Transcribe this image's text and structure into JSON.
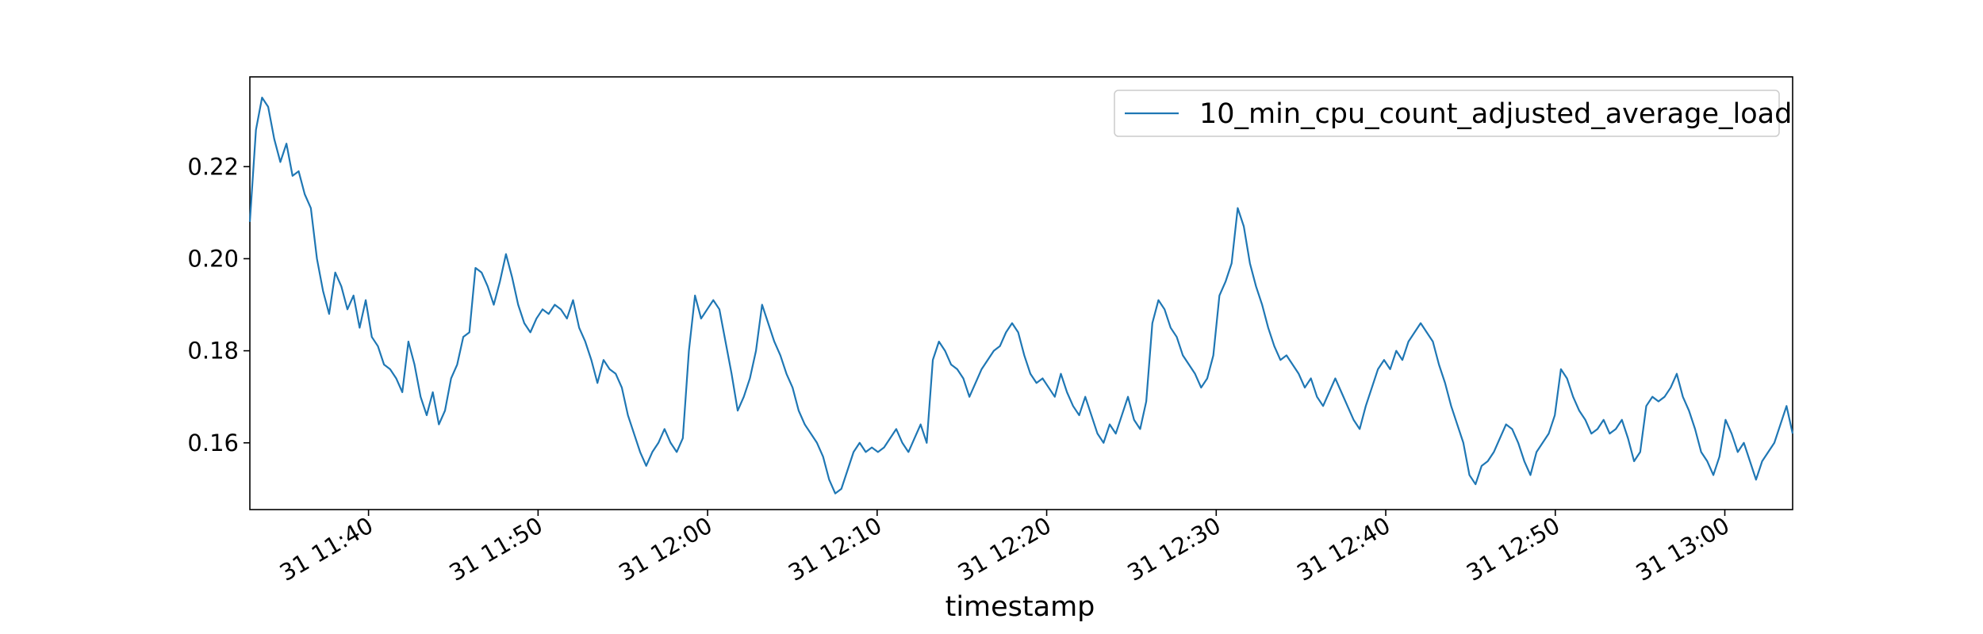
{
  "chart_data": {
    "type": "line",
    "title": "",
    "xlabel": "timestamp",
    "ylabel": "",
    "x_start": "2024-01-31T11:33",
    "x_end": "2024-01-31T13:04",
    "xlim": [
      "2024-01-31T11:33",
      "2024-01-31T13:04"
    ],
    "ylim": [
      0.1455,
      0.2395
    ],
    "yticks": [
      0.16,
      0.18,
      0.2,
      0.22
    ],
    "ytick_labels": [
      "0.16",
      "0.18",
      "0.20",
      "0.22"
    ],
    "xticks": [
      "2024-01-31T11:40",
      "2024-01-31T11:50",
      "2024-01-31T12:00",
      "2024-01-31T12:10",
      "2024-01-31T12:20",
      "2024-01-31T12:30",
      "2024-01-31T12:40",
      "2024-01-31T12:50",
      "2024-01-31T13:00"
    ],
    "xtick_labels": [
      "31 11:40",
      "31 11:50",
      "31 12:00",
      "31 12:10",
      "31 12:20",
      "31 12:30",
      "31 12:40",
      "31 12:50",
      "31 13:00"
    ],
    "grid": false,
    "legend_position": "top-right",
    "series": [
      {
        "name": "10_min_cpu_count_adjusted_average_load",
        "color": "#1f77b4",
        "values": [
          0.208,
          0.228,
          0.235,
          0.233,
          0.226,
          0.221,
          0.225,
          0.218,
          0.219,
          0.214,
          0.211,
          0.2,
          0.193,
          0.188,
          0.197,
          0.194,
          0.189,
          0.192,
          0.185,
          0.191,
          0.183,
          0.181,
          0.177,
          0.176,
          0.174,
          0.171,
          0.182,
          0.177,
          0.17,
          0.166,
          0.171,
          0.164,
          0.167,
          0.174,
          0.177,
          0.183,
          0.184,
          0.198,
          0.197,
          0.194,
          0.19,
          0.195,
          0.201,
          0.196,
          0.19,
          0.186,
          0.184,
          0.187,
          0.189,
          0.188,
          0.19,
          0.189,
          0.187,
          0.191,
          0.185,
          0.182,
          0.178,
          0.173,
          0.178,
          0.176,
          0.175,
          0.172,
          0.166,
          0.162,
          0.158,
          0.155,
          0.158,
          0.16,
          0.163,
          0.16,
          0.158,
          0.161,
          0.18,
          0.192,
          0.187,
          0.189,
          0.191,
          0.189,
          0.182,
          0.175,
          0.167,
          0.17,
          0.174,
          0.18,
          0.19,
          0.186,
          0.182,
          0.179,
          0.175,
          0.172,
          0.167,
          0.164,
          0.162,
          0.16,
          0.157,
          0.152,
          0.149,
          0.15,
          0.154,
          0.158,
          0.16,
          0.158,
          0.159,
          0.158,
          0.159,
          0.161,
          0.163,
          0.16,
          0.158,
          0.161,
          0.164,
          0.16,
          0.178,
          0.182,
          0.18,
          0.177,
          0.176,
          0.174,
          0.17,
          0.173,
          0.176,
          0.178,
          0.18,
          0.181,
          0.184,
          0.186,
          0.184,
          0.179,
          0.175,
          0.173,
          0.174,
          0.172,
          0.17,
          0.175,
          0.171,
          0.168,
          0.166,
          0.17,
          0.166,
          0.162,
          0.16,
          0.164,
          0.162,
          0.166,
          0.17,
          0.165,
          0.163,
          0.169,
          0.186,
          0.191,
          0.189,
          0.185,
          0.183,
          0.179,
          0.177,
          0.175,
          0.172,
          0.174,
          0.179,
          0.192,
          0.195,
          0.199,
          0.211,
          0.207,
          0.199,
          0.194,
          0.19,
          0.185,
          0.181,
          0.178,
          0.179,
          0.177,
          0.175,
          0.172,
          0.174,
          0.17,
          0.168,
          0.171,
          0.174,
          0.171,
          0.168,
          0.165,
          0.163,
          0.168,
          0.172,
          0.176,
          0.178,
          0.176,
          0.18,
          0.178,
          0.182,
          0.184,
          0.186,
          0.184,
          0.182,
          0.177,
          0.173,
          0.168,
          0.164,
          0.16,
          0.153,
          0.151,
          0.155,
          0.156,
          0.158,
          0.161,
          0.164,
          0.163,
          0.16,
          0.156,
          0.153,
          0.158,
          0.16,
          0.162,
          0.166,
          0.176,
          0.174,
          0.17,
          0.167,
          0.165,
          0.162,
          0.163,
          0.165,
          0.162,
          0.163,
          0.165,
          0.161,
          0.156,
          0.158,
          0.168,
          0.17,
          0.169,
          0.17,
          0.172,
          0.175,
          0.17,
          0.167,
          0.163,
          0.158,
          0.156,
          0.153,
          0.157,
          0.165,
          0.162,
          0.158,
          0.16,
          0.156,
          0.152,
          0.156,
          0.158,
          0.16,
          0.164,
          0.168,
          0.162
        ]
      }
    ]
  }
}
